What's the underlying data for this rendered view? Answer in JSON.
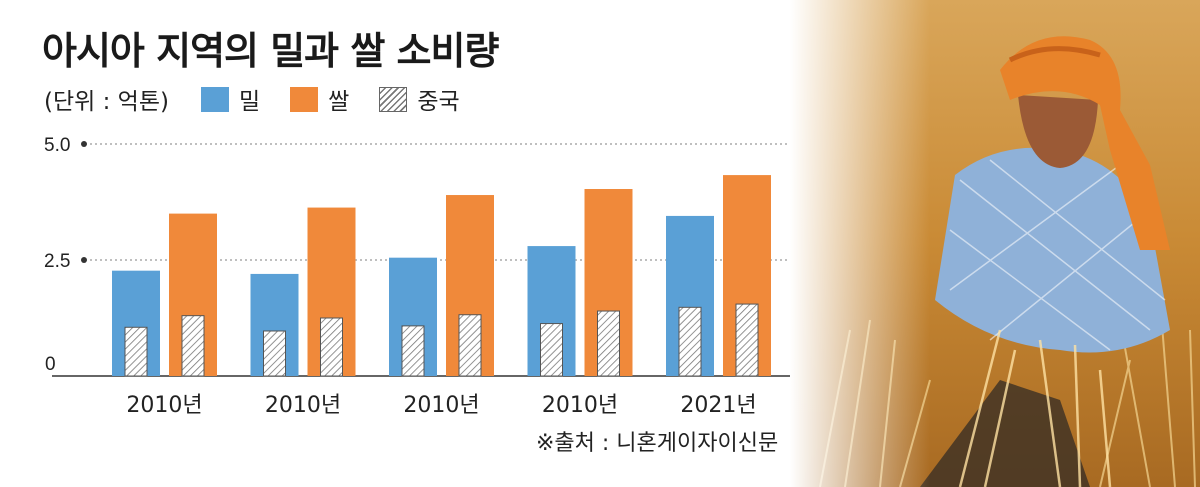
{
  "title": "아시아 지역의 밀과 쌀 소비량",
  "legend": {
    "unit": "(단위 : 억톤)",
    "items": [
      {
        "label": "밀",
        "color": "#5aa0d6"
      },
      {
        "label": "쌀",
        "color": "#f0893a"
      },
      {
        "label": "중국",
        "color": "#ffffff"
      }
    ]
  },
  "source": "※출처 : 니혼게이자이신문",
  "chart_data": {
    "type": "bar",
    "categories": [
      "2010년",
      "2010년",
      "2010년",
      "2010년",
      "2021년"
    ],
    "series": [
      {
        "name": "밀",
        "values": [
          2.27,
          2.2,
          2.55,
          2.8,
          3.45
        ],
        "color": "#5aa0d6"
      },
      {
        "name": "쌀",
        "values": [
          3.5,
          3.63,
          3.9,
          4.03,
          4.33
        ],
        "color": "#f0893a"
      },
      {
        "name": "중국 (밀)",
        "values": [
          1.05,
          0.97,
          1.08,
          1.13,
          1.48
        ],
        "overlay_on": "밀",
        "pattern": "hatch"
      },
      {
        "name": "중국 (쌀)",
        "values": [
          1.3,
          1.25,
          1.32,
          1.4,
          1.55
        ],
        "overlay_on": "쌀",
        "pattern": "hatch"
      }
    ],
    "yticks": [
      "0",
      "2.5",
      "5.0"
    ],
    "ytick_values": [
      0,
      2.5,
      5.0
    ],
    "ylim": [
      0,
      5.0
    ],
    "grid": true
  }
}
